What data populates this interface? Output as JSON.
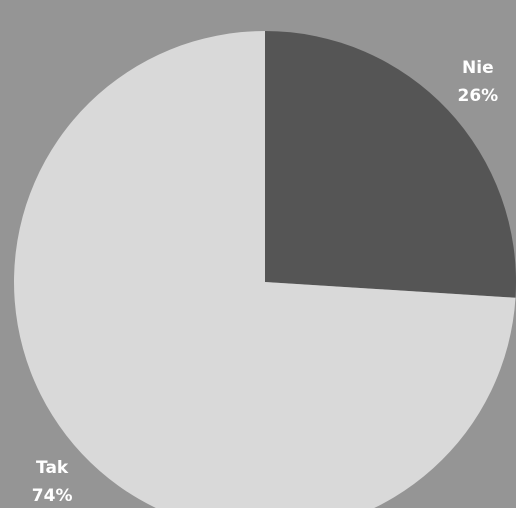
{
  "chart_data": {
    "type": "pie",
    "categories": [
      "Nie",
      "Tak"
    ],
    "values": [
      26,
      74
    ],
    "value_labels": [
      "26%",
      "74%"
    ],
    "colors": [
      "#555555",
      "#d9d9d9"
    ],
    "start_angle": 0,
    "direction": "clockwise"
  }
}
